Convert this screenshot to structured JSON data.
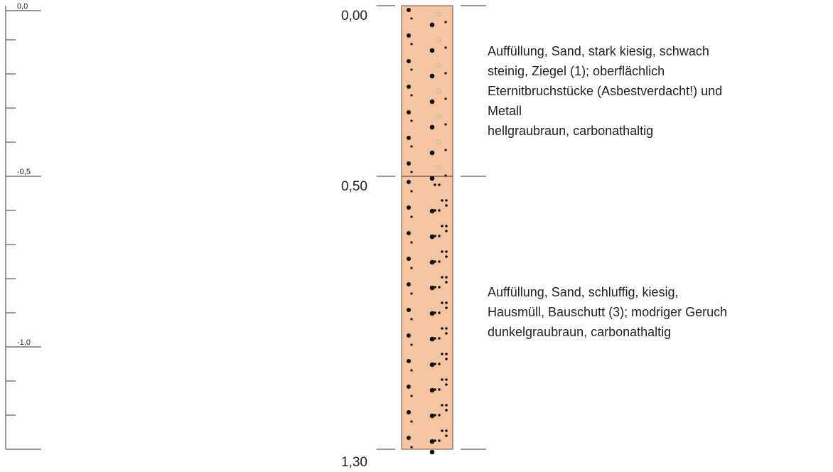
{
  "scale": {
    "labels": [
      "0,0",
      "-0,5",
      "-1,0"
    ]
  },
  "depths": [
    "0,00",
    "0,50",
    "1,30"
  ],
  "layers": [
    {
      "description": [
        "Auffüllung, Sand, stark kiesig, schwach",
        "steinig, Ziegel (1); oberflächlich",
        "Eternitbruchstücke (Asbestverdacht!)  und",
        "Metall",
        "hellgraubraun, carbonathaltig"
      ]
    },
    {
      "description": [
        "Auffüllung, Sand, schluffig, kiesig,",
        "Hausmüll, Bauschutt (3); modriger Geruch",
        "dunkelgraubraun, carbonathaltig"
      ]
    }
  ]
}
